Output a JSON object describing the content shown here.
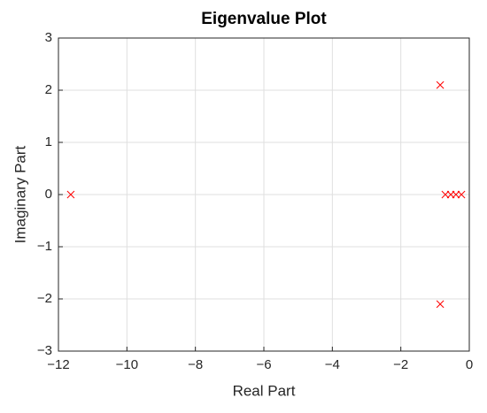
{
  "chart_data": {
    "type": "scatter",
    "title": "Eigenvalue Plot",
    "xlabel": "Real Part",
    "ylabel": "Imaginary Part",
    "x": [
      -11.64,
      -0.85,
      -0.85,
      -0.7,
      -0.54,
      -0.39,
      -0.23
    ],
    "values": [
      0,
      2.1,
      -2.1,
      0,
      0,
      0,
      0
    ],
    "color": "#ff0000",
    "marker": "x",
    "xlim": [
      -12,
      0
    ],
    "xticks": [
      {
        "value": -12,
        "label": "−12"
      },
      {
        "value": -10,
        "label": "−10"
      },
      {
        "value": -8,
        "label": "−8"
      },
      {
        "value": -6,
        "label": "−6"
      },
      {
        "value": -4,
        "label": "−4"
      },
      {
        "value": -2,
        "label": "−2"
      },
      0
    ],
    "ylim": [
      -3,
      3
    ],
    "yticks": [
      {
        "value": -3,
        "label": "−3"
      },
      {
        "value": -2,
        "label": "−2"
      },
      {
        "value": -1,
        "label": "−1"
      },
      0,
      1,
      2,
      3
    ],
    "grid": true
  }
}
